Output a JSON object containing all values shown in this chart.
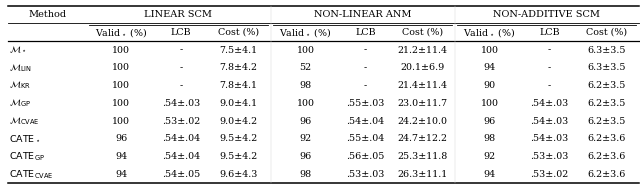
{
  "col_groups": [
    {
      "label": "LINEAR SCM"
    },
    {
      "label": "NON-LINEAR ANM"
    },
    {
      "label": "NON-ADDITIVE SCM"
    }
  ],
  "row_labels_main": [
    "$\\mathcal{M}_\\star$",
    "$\\mathcal{M}_{\\mathrm{LIN}}$",
    "$\\mathcal{M}_{\\mathrm{KR}}$",
    "$\\mathcal{M}_{\\mathrm{GP}}$",
    "$\\mathcal{M}_{\\mathrm{CVAE}}$",
    "$\\mathrm{CATE}_\\star$",
    "$\\mathrm{CATE}_{\\mathrm{GP}}$",
    "$\\mathrm{CATE}_{\\mathrm{CVAE}}$"
  ],
  "data": [
    [
      "100",
      "-",
      "7.5±4.1",
      "100",
      "-",
      "21.2±11.4",
      "100",
      "-",
      "6.3±3.5"
    ],
    [
      "100",
      "-",
      "7.8±4.2",
      "52",
      "-",
      "20.1±6.9",
      "94",
      "-",
      "6.3±3.5"
    ],
    [
      "100",
      "-",
      "7.8±4.1",
      "98",
      "-",
      "21.4±11.4",
      "90",
      "-",
      "6.2±3.5"
    ],
    [
      "100",
      ".54±.03",
      "9.0±4.1",
      "100",
      ".55±.03",
      "23.0±11.7",
      "100",
      ".54±.03",
      "6.2±3.5"
    ],
    [
      "100",
      ".53±.02",
      "9.0±4.2",
      "96",
      ".54±.04",
      "24.2±10.0",
      "96",
      ".54±.03",
      "6.2±3.5"
    ],
    [
      "96",
      ".54±.04",
      "9.5±4.2",
      "92",
      ".55±.04",
      "24.7±12.2",
      "98",
      ".54±.03",
      "6.2±3.6"
    ],
    [
      "94",
      ".54±.04",
      "9.5±4.2",
      "96",
      ".56±.05",
      "25.3±11.8",
      "92",
      ".53±.03",
      "6.2±3.6"
    ],
    [
      "94",
      ".54±.05",
      "9.6±4.3",
      "98",
      ".53±.03",
      "26.3±11.1",
      "94",
      ".53±.02",
      "6.2±3.6"
    ]
  ],
  "font_size": 6.8,
  "header_font_size": 7.0
}
